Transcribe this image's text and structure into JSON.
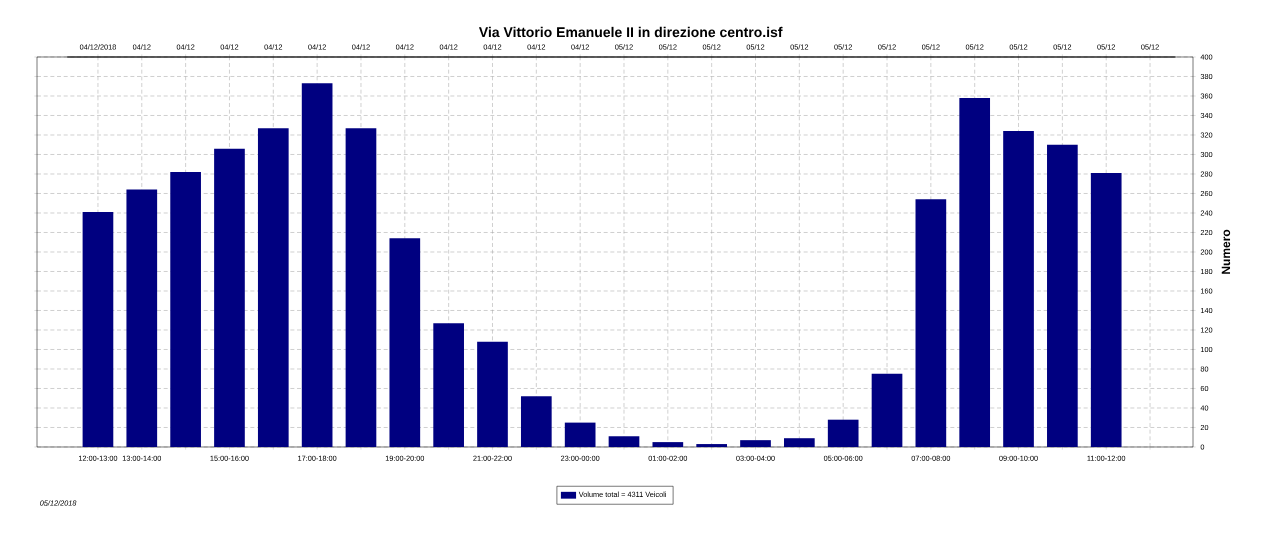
{
  "chart_data": {
    "type": "bar",
    "title": "Via Vittorio Emanuele II in direzione centro.isf",
    "ylabel": "Numero",
    "categories": [
      "12:00-13:00",
      "13:00-14:00",
      null,
      "15:00-16:00",
      null,
      "17:00-18:00",
      null,
      "19:00-20:00",
      null,
      "21:00-22:00",
      null,
      "23:00-00:00",
      null,
      "01:00-02:00",
      null,
      "03:00-04:00",
      null,
      "05:00-06:00",
      null,
      "07:00-08:00",
      null,
      "09:00-10:00",
      null,
      "11:00-12:00",
      null
    ],
    "ylim": [
      0,
      400
    ],
    "yticks": [
      0,
      20,
      40,
      60,
      80,
      100,
      120,
      140,
      160,
      180,
      200,
      220,
      240,
      260,
      280,
      300,
      320,
      340,
      360,
      380,
      400
    ],
    "series": [
      {
        "name": "Volume total = 4311 Veicoli",
        "color": "#000080",
        "values": [
          241,
          264,
          282,
          306,
          327,
          373,
          327,
          214,
          127,
          108,
          52,
          25,
          11,
          5,
          3,
          7,
          9,
          28,
          75,
          254,
          358,
          324,
          310,
          281,
          null
        ]
      }
    ],
    "grid": true,
    "legend": "bottom",
    "annotations": [
      "04/12/2018",
      "04/12",
      "04/12",
      "04/12",
      "04/12",
      "04/12",
      "04/12",
      "04/12",
      "04/12",
      "04/12",
      "04/12",
      "04/12",
      "05/12",
      "05/12",
      "05/12",
      "05/12",
      "05/12",
      "05/12",
      "05/12",
      "05/12",
      "05/12",
      "05/12",
      "05/12",
      "05/12",
      "05/12",
      "05/12/2018"
    ]
  }
}
